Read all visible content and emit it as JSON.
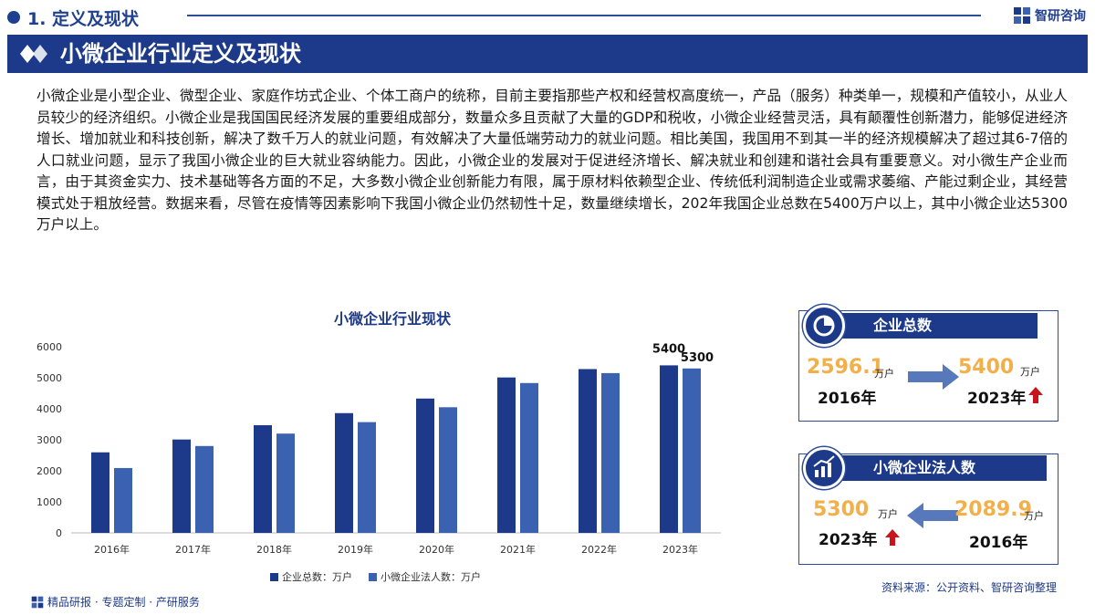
{
  "header": {
    "section_title": "1. 定义及现状",
    "brand": "智研咨询"
  },
  "banner": {
    "title": "小微企业行业定义及现状"
  },
  "paragraph": "小微企业是小型企业、微型企业、家庭作坊式企业、个体工商户的统称，目前主要指那些产权和经营权高度统一，产品（服务）种类单一，规模和产值较小，从业人员较少的经济组织。小微企业是我国国民经济发展的重要组成部分，数量众多且贡献了大量的GDP和税收，小微企业经营灵活，具有颠覆性创新潜力，能够促进经济增长、增加就业和科技创新，解决了数千万人的就业问题，有效解决了大量低端劳动力的就业问题。相比美国，我国用不到其一半的经济规模解决了超过其6-7倍的人口就业问题，显示了我国小微企业的巨大就业容纳能力。因此，小微企业的发展对于促进经济增长、解决就业和创建和谐社会具有重要意义。对小微生产企业而言，由于其资金实力、技术基础等各方面的不足，大多数小微企业创新能力有限，属于原材料依赖型企业、传统低利润制造企业或需求萎缩、产能过剩企业，其经营模式处于粗放经营。数据来看，尽管在疫情等因素影响下我国小微企业仍然韧性十足，数量继续增长，202年我国企业总数在5400万户以上，其中小微企业达5300万户以上。",
  "chart_data": {
    "type": "bar",
    "title": "小微企业行业现状",
    "categories": [
      "2016年",
      "2017年",
      "2018年",
      "2019年",
      "2020年",
      "2021年",
      "2022年",
      "2023年"
    ],
    "series": [
      {
        "name": "企业总数：万户",
        "values": [
          2596.1,
          3010,
          3470,
          3860,
          4330,
          5010,
          5280,
          5400
        ],
        "color": "#1d3a8a"
      },
      {
        "name": "小微企业法人数：万户",
        "values": [
          2089.9,
          2800,
          3200,
          3570,
          4050,
          4830,
          5150,
          5300
        ],
        "color": "#3a62b0"
      }
    ],
    "data_labels": {
      "series0_last": "5400",
      "series1_last": "5300"
    },
    "yticks": [
      "0",
      "1000",
      "2000",
      "3000",
      "4000",
      "5000",
      "6000"
    ],
    "ylim": [
      0,
      6000
    ],
    "grid": false,
    "legend": "bottom"
  },
  "card_total": {
    "title": "企业总数",
    "from_value": "2596.1",
    "from_unit": "万户",
    "from_year": "2016年",
    "to_value": "5400",
    "to_unit": "万户",
    "to_year": "2023年"
  },
  "card_small": {
    "title": "小微企业法人数",
    "to_value": "5300",
    "to_unit": "万户",
    "to_year": "2023年",
    "from_value": "2089.9",
    "from_unit": "万户",
    "from_year": "2016年"
  },
  "footer": {
    "left": "精品研报 · 专题定制 · 产研服务",
    "source": "资料来源：公开资料、智研咨询整理"
  },
  "colors": {
    "primary": "#1d3a8a",
    "secondary": "#3a62b0",
    "accent": "#f2b04a",
    "up_arrow": "#c8151d"
  }
}
